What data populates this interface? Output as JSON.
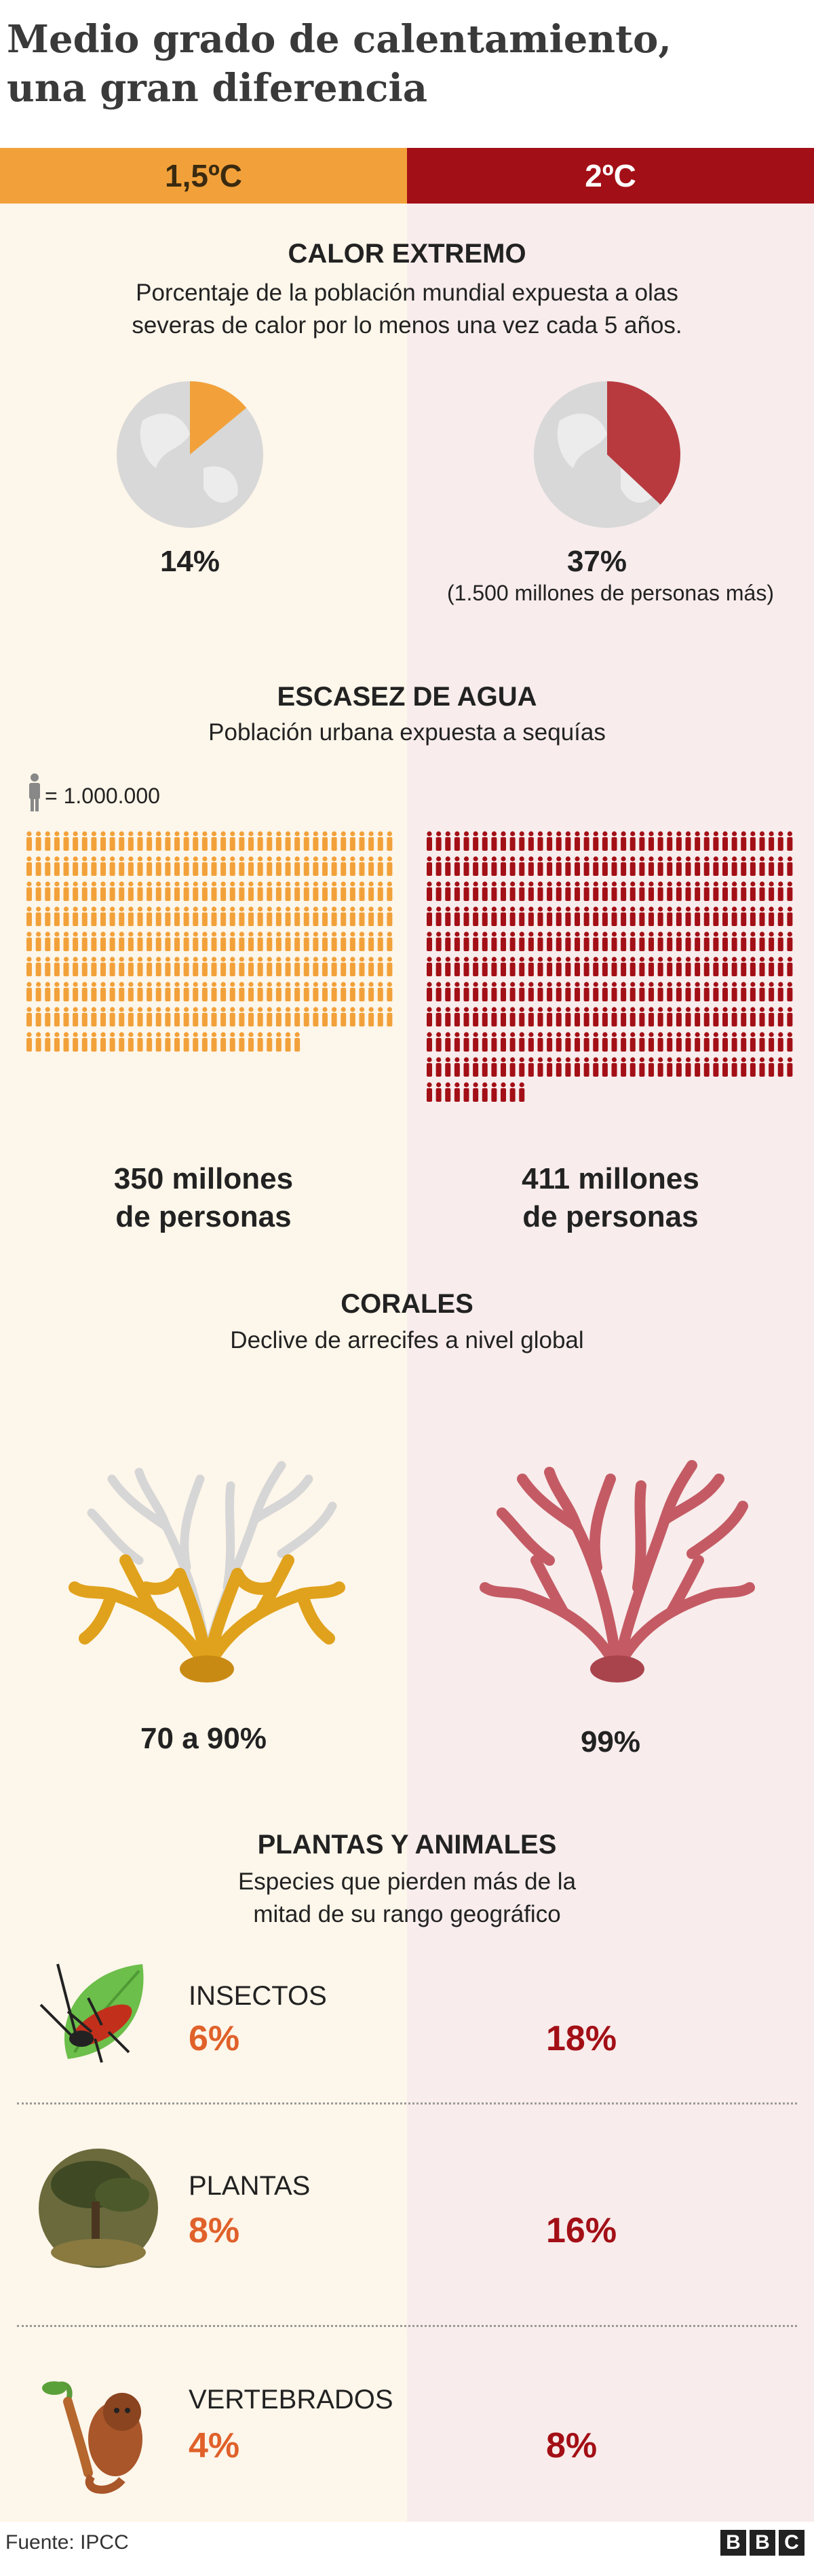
{
  "title": {
    "line1": "Medio grado de calentamiento,",
    "line2": "una gran diferencia"
  },
  "headers": {
    "left": "1,5ºC",
    "right": "2ºC"
  },
  "colors": {
    "left_accent": "#f2a13a",
    "right_accent": "#a30f16",
    "left_pct": "#e0612a"
  },
  "sections": {
    "heat": {
      "title": "CALOR EXTREMO",
      "subtitle_line1": "Porcentaje de la población mundial expuesta a olas",
      "subtitle_line2": "severas de calor por lo menos una vez cada 5 años.",
      "left_value": "14%",
      "right_value": "37%",
      "right_note": "(1.500 millones de personas más)",
      "icon": "globe-pie-icon"
    },
    "water": {
      "title": "ESCASEZ DE AGUA",
      "subtitle": "Población urbana expuesta a sequías",
      "legend": "= 1.000.000",
      "left_value_line1": "350 millones",
      "left_value_line2": "de personas",
      "right_value_line1": "411 millones",
      "right_value_line2": "de personas",
      "icon": "person-icon"
    },
    "corals": {
      "title": "CORALES",
      "subtitle": "Declive de arrecifes a nivel global",
      "left_value": "70 a 90%",
      "right_value": "99%",
      "icon": "coral-icon"
    },
    "species": {
      "title": "PLANTAS Y ANIMALES",
      "subtitle_line1": "Especies que pierden más de la",
      "subtitle_line2": "mitad de su rango geográfico",
      "rows": [
        {
          "label": "INSECTOS",
          "left": "6%",
          "right": "18%",
          "icon": "insect-icon"
        },
        {
          "label": "PLANTAS",
          "left": "8%",
          "right": "16%",
          "icon": "tree-icon"
        },
        {
          "label": "VERTEBRADOS",
          "left": "4%",
          "right": "8%",
          "icon": "monkey-icon"
        }
      ]
    }
  },
  "footer": {
    "source": "Fuente: IPCC",
    "logo": [
      "B",
      "B",
      "C"
    ]
  },
  "chart_data": [
    {
      "type": "pie",
      "title": "CALOR EXTREMO",
      "series": [
        {
          "name": "1,5ºC",
          "values": [
            14,
            86
          ]
        },
        {
          "name": "2ºC",
          "values": [
            37,
            63
          ]
        }
      ]
    },
    {
      "type": "bar",
      "title": "ESCASEZ DE AGUA",
      "categories": [
        "1,5ºC",
        "2ºC"
      ],
      "values": [
        350,
        411
      ],
      "ylabel": "millones de personas"
    },
    {
      "type": "bar",
      "title": "CORALES",
      "categories": [
        "1,5ºC",
        "2ºC"
      ],
      "values": [
        [
          70,
          90
        ],
        99
      ]
    },
    {
      "type": "bar",
      "title": "PLANTAS Y ANIMALES",
      "categories": [
        "INSECTOS",
        "PLANTAS",
        "VERTEBRADOS"
      ],
      "series": [
        {
          "name": "1,5ºC",
          "values": [
            6,
            8,
            4
          ]
        },
        {
          "name": "2ºC",
          "values": [
            18,
            16,
            8
          ]
        }
      ]
    }
  ]
}
